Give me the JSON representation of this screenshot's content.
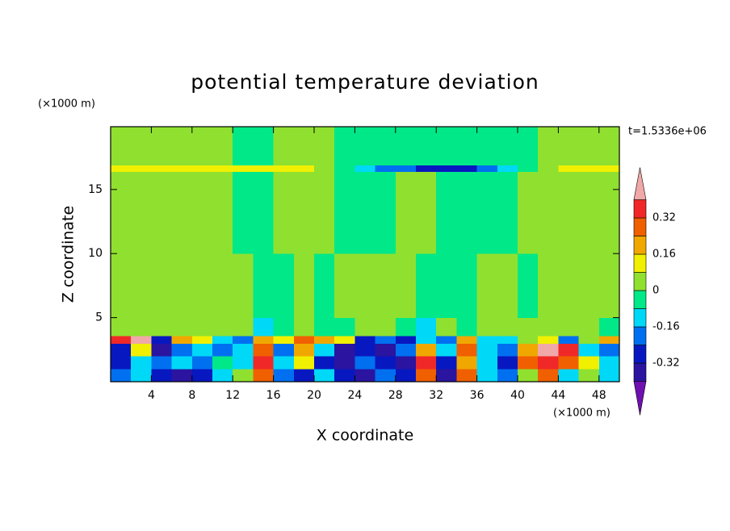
{
  "chart_data": {
    "type": "contour",
    "title": "potential temperature deviation",
    "x_label": "X coordinate",
    "y_label": "Z coordinate",
    "x_unit": "(×1000 m)",
    "y_unit": "(×1000 m)",
    "time_label": "t=1.5336e+06",
    "xlim": [
      0,
      50
    ],
    "ylim": [
      0,
      19.9
    ],
    "xticks": [
      4,
      8,
      12,
      16,
      20,
      24,
      28,
      32,
      36,
      40,
      44,
      48
    ],
    "yticks": [
      5,
      10,
      15
    ],
    "levels": [
      -0.4,
      -0.32,
      -0.24,
      -0.16,
      -0.08,
      0,
      0.08,
      0.16,
      0.24,
      0.32,
      0.4
    ],
    "colors": [
      "#7010b0",
      "#2a14a0",
      "#0818c0",
      "#0070f0",
      "#00d8f8",
      "#00e888",
      "#90e030",
      "#f0f000",
      "#f0a800",
      "#f06000",
      "#f02828",
      "#f0a8a8"
    ],
    "colorbar_ticks": [
      0.32,
      0.16,
      0,
      -0.16,
      -0.32
    ],
    "field": {
      "xbins": [
        0,
        2,
        4,
        6,
        8,
        10,
        12,
        14,
        16,
        18,
        20,
        22,
        24,
        26,
        28,
        30,
        32,
        34,
        36,
        38,
        40,
        42,
        44,
        46,
        48,
        50
      ],
      "zbins": [
        0,
        1,
        2,
        3,
        3.6,
        5,
        10,
        16.4,
        16.9,
        19.9
      ],
      "values": [
        [
          -0.2,
          -0.1,
          -0.3,
          -0.35,
          -0.3,
          -0.1,
          0.05,
          0.3,
          -0.2,
          -0.25,
          -0.1,
          -0.3,
          -0.35,
          -0.2,
          -0.3,
          0.3,
          -0.35,
          0.3,
          -0.1,
          -0.2,
          0.05,
          0.3,
          -0.1,
          0.05,
          -0.1
        ],
        [
          -0.3,
          -0.1,
          -0.2,
          -0.1,
          -0.2,
          -0.05,
          -0.1,
          0.35,
          -0.1,
          0.1,
          -0.3,
          -0.35,
          -0.2,
          -0.3,
          -0.35,
          0.32,
          -0.3,
          0.2,
          -0.1,
          -0.3,
          0.3,
          0.38,
          0.3,
          0.1,
          -0.1
        ],
        [
          -0.25,
          0.1,
          -0.35,
          -0.2,
          -0.1,
          -0.2,
          -0.1,
          0.3,
          -0.2,
          0.2,
          -0.1,
          -0.35,
          -0.3,
          -0.35,
          -0.2,
          0.2,
          -0.1,
          0.3,
          -0.1,
          -0.2,
          0.2,
          0.42,
          0.35,
          -0.1,
          -0.2
        ],
        [
          0.35,
          0.42,
          -0.3,
          0.2,
          0.1,
          -0.1,
          -0.2,
          0.2,
          0.1,
          0.3,
          0.2,
          0.1,
          -0.3,
          -0.2,
          -0.3,
          -0.1,
          -0.2,
          0.2,
          -0.1,
          -0.1,
          0.05,
          0.1,
          -0.2,
          0.05,
          0.2
        ],
        [
          0.03,
          0.03,
          0.03,
          0.03,
          0.03,
          0.03,
          0.03,
          -0.1,
          -0.05,
          0.03,
          -0.05,
          -0.05,
          0.03,
          0.03,
          -0.05,
          -0.1,
          0.03,
          -0.05,
          0.03,
          0.03,
          0.03,
          0.03,
          0.03,
          0.03,
          -0.05
        ],
        [
          0.03,
          0.03,
          0.03,
          0.03,
          0.03,
          0.03,
          0.03,
          -0.04,
          -0.04,
          0.03,
          -0.04,
          0.03,
          0.03,
          0.03,
          0.03,
          -0.04,
          -0.04,
          -0.04,
          0.03,
          0.03,
          -0.04,
          0.03,
          0.03,
          0.03,
          0.03
        ],
        [
          0.03,
          0.03,
          0.03,
          0.03,
          0.03,
          0.03,
          -0.04,
          -0.04,
          0.03,
          0.03,
          0.03,
          -0.04,
          -0.04,
          -0.04,
          0.03,
          0.03,
          -0.04,
          -0.04,
          -0.04,
          -0.04,
          0.03,
          0.03,
          0.03,
          0.03,
          0.03
        ],
        [
          0.1,
          0.1,
          0.1,
          0.1,
          0.1,
          0.1,
          0.1,
          0.1,
          0.1,
          0.1,
          0.05,
          -0.05,
          -0.1,
          -0.2,
          -0.2,
          -0.3,
          -0.3,
          -0.3,
          -0.2,
          -0.1,
          -0.05,
          0.05,
          0.1,
          0.1,
          0.12
        ],
        [
          0.03,
          0.03,
          0.03,
          0.03,
          0.03,
          0.03,
          -0.04,
          -0.04,
          0.03,
          0.03,
          0.03,
          -0.04,
          -0.04,
          -0.04,
          -0.04,
          -0.04,
          -0.04,
          -0.04,
          -0.04,
          -0.04,
          -0.04,
          0.03,
          0.03,
          0.03,
          0.03
        ]
      ]
    }
  }
}
